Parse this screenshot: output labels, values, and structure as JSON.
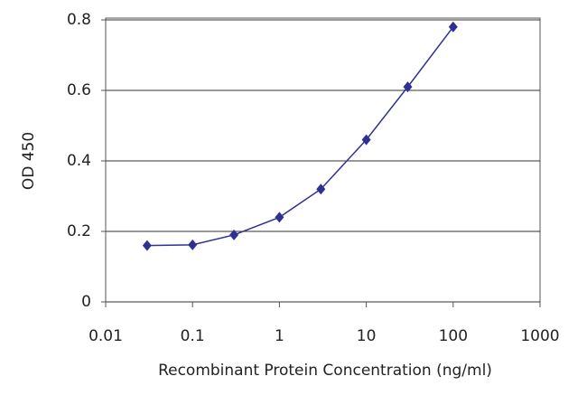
{
  "chart_data": {
    "type": "line",
    "xlabel": "Recombinant Protein Concentration (ng/ml)",
    "ylabel": "OD 450",
    "log_x": true,
    "grid": true,
    "series": [
      {
        "name": "OD 450",
        "color": "#2e3192",
        "x": [
          0.03,
          0.1,
          0.3,
          1,
          3,
          10,
          30,
          100
        ],
        "values": [
          0.16,
          0.162,
          0.19,
          0.24,
          0.32,
          0.46,
          0.61,
          0.78
        ]
      }
    ],
    "xlim": [
      0.01,
      1000
    ],
    "xticks": [
      0.01,
      0.1,
      1,
      10,
      100,
      1000
    ],
    "ylim": [
      0,
      0.8
    ],
    "yticks": [
      0,
      0.2,
      0.4,
      0.6,
      0.8
    ]
  }
}
